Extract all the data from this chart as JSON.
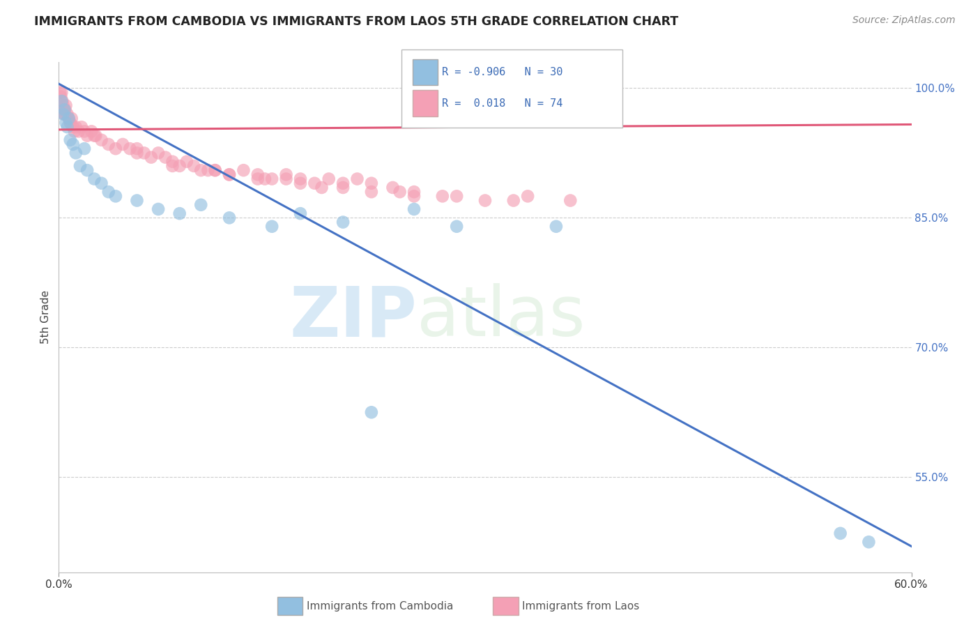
{
  "title": "IMMIGRANTS FROM CAMBODIA VS IMMIGRANTS FROM LAOS 5TH GRADE CORRELATION CHART",
  "source_text": "Source: ZipAtlas.com",
  "ylabel": "5th Grade",
  "watermark": "ZIPatlas",
  "legend": {
    "blue_R": "-0.906",
    "blue_N": "30",
    "pink_R": "0.018",
    "pink_N": "74"
  },
  "xlim": [
    0.0,
    60.0
  ],
  "ylim": [
    44.0,
    103.0
  ],
  "ytick_positions": [
    55.0,
    70.0,
    85.0,
    100.0
  ],
  "ytick_labels": [
    "55.0%",
    "70.0%",
    "85.0%",
    "100.0%"
  ],
  "blue_color": "#92bfe0",
  "pink_color": "#f4a0b5",
  "blue_line_color": "#4472c4",
  "pink_line_color": "#e05878",
  "background": "#ffffff",
  "blue_line_x0": 0.0,
  "blue_line_y0": 100.5,
  "blue_line_x1": 60.0,
  "blue_line_y1": 47.0,
  "pink_line_x0": 0.0,
  "pink_line_y0": 95.2,
  "pink_line_x1": 60.0,
  "pink_line_y1": 95.8,
  "blue_scatter_x": [
    0.2,
    0.3,
    0.4,
    0.5,
    0.6,
    0.7,
    0.8,
    1.0,
    1.2,
    1.5,
    1.8,
    2.0,
    2.5,
    3.0,
    3.5,
    4.0,
    5.5,
    7.0,
    8.5,
    10.0,
    12.0,
    15.0,
    17.0,
    20.0,
    22.0,
    25.0,
    28.0,
    35.0,
    55.0,
    57.0
  ],
  "blue_scatter_y": [
    98.5,
    97.0,
    97.5,
    96.0,
    95.5,
    96.5,
    94.0,
    93.5,
    92.5,
    91.0,
    93.0,
    90.5,
    89.5,
    89.0,
    88.0,
    87.5,
    87.0,
    86.0,
    85.5,
    86.5,
    85.0,
    84.0,
    85.5,
    84.5,
    62.5,
    86.0,
    84.0,
    84.0,
    48.5,
    47.5
  ],
  "pink_scatter_x": [
    0.1,
    0.15,
    0.2,
    0.25,
    0.3,
    0.35,
    0.4,
    0.45,
    0.5,
    0.6,
    0.7,
    0.8,
    0.9,
    1.0,
    1.1,
    1.2,
    1.4,
    1.6,
    1.8,
    2.0,
    2.3,
    2.6,
    3.0,
    3.5,
    4.0,
    4.5,
    5.0,
    5.5,
    6.0,
    6.5,
    7.0,
    7.5,
    8.0,
    8.5,
    9.0,
    9.5,
    10.0,
    11.0,
    12.0,
    13.0,
    14.0,
    15.0,
    16.0,
    17.0,
    18.0,
    19.0,
    20.0,
    21.0,
    22.0,
    23.5,
    25.0,
    27.0,
    30.0,
    33.0,
    36.0,
    10.5,
    14.5,
    18.5,
    22.0,
    25.0,
    2.5,
    5.5,
    8.0,
    11.0,
    14.0,
    17.0,
    20.0,
    24.0,
    28.0,
    32.0,
    12.0,
    16.0,
    0.4,
    0.8
  ],
  "pink_scatter_y": [
    99.5,
    99.0,
    99.5,
    98.5,
    98.0,
    97.5,
    97.0,
    97.5,
    98.0,
    97.0,
    96.5,
    96.0,
    96.5,
    95.5,
    95.0,
    95.5,
    95.0,
    95.5,
    95.0,
    94.5,
    95.0,
    94.5,
    94.0,
    93.5,
    93.0,
    93.5,
    93.0,
    93.0,
    92.5,
    92.0,
    92.5,
    92.0,
    91.5,
    91.0,
    91.5,
    91.0,
    90.5,
    90.5,
    90.0,
    90.5,
    90.0,
    89.5,
    90.0,
    89.5,
    89.0,
    89.5,
    89.0,
    89.5,
    89.0,
    88.5,
    88.0,
    87.5,
    87.0,
    87.5,
    87.0,
    90.5,
    89.5,
    88.5,
    88.0,
    87.5,
    94.5,
    92.5,
    91.0,
    90.5,
    89.5,
    89.0,
    88.5,
    88.0,
    87.5,
    87.0,
    90.0,
    89.5,
    97.0,
    96.0
  ]
}
